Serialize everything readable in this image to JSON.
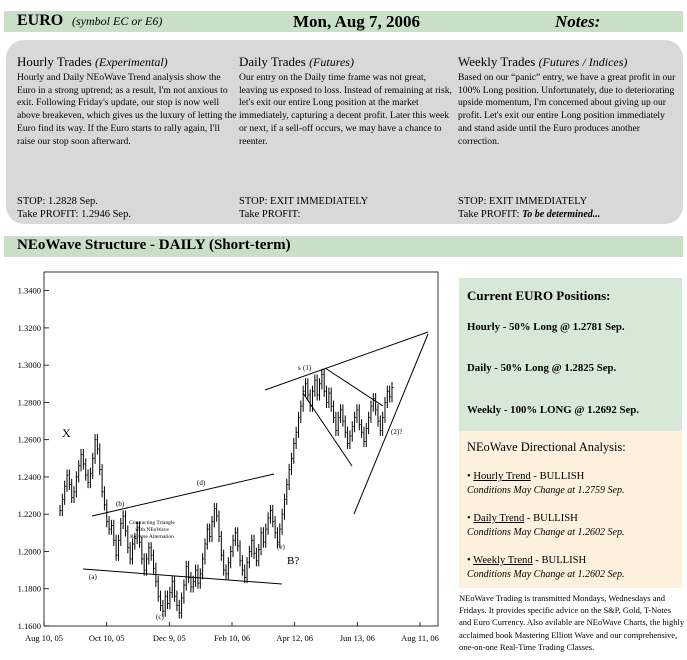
{
  "header": {
    "currency": "EURO",
    "symbol": "(symbol EC or E6)",
    "date": "Mon, Aug 7, 2006",
    "notes_label": "Notes:"
  },
  "notes": [
    {
      "title": "Hourly Trades",
      "subtitle": "(Experimental)",
      "body": "Hourly and Daily NEoWave Trend analysis show the Euro in a strong uptrend; as a result, I'm not anxious to exit. Following Friday's update, our stop is now well above breakeven, which gives us the luxury of letting the Euro find its way. If the Euro starts to rally again, I'll raise our stop soon afterward.",
      "stop": "STOP: 1.2828 Sep.",
      "profit_label": "Take PROFIT: ",
      "profit_value": "1.2946 Sep."
    },
    {
      "title": "Daily Trades",
      "subtitle": "(Futures)",
      "body": "Our entry on the Daily time frame was not great, leaving us exposed to loss. Instead of remaining at risk, let's exit our entire Long position at the market immediately, capturing a decent profit. Later this week or next, if a sell-off occurs, we may have a chance to reenter.",
      "stop": "STOP: EXIT IMMEDIATELY",
      "profit_label": "Take PROFIT:",
      "profit_value": ""
    },
    {
      "title": "Weekly Trades",
      "subtitle": "(Futures / Indices)",
      "body": "Based on our “panic” entry, we have a great profit in our 100% Long position. Unfortunately, due to deteriorating upside momentum, I'm concerned about giving up our profit. Let's exit our entire Long position immediately and stand aside until the Euro produces another correction.",
      "stop": "STOP: EXIT IMMEDIATELY",
      "profit_label": "Take PROFIT: ",
      "profit_value": "To be determined..."
    }
  ],
  "structure": {
    "title": "NEoWave Structure - DAILY (Short-term)"
  },
  "positions": {
    "title": "Current EURO Positions:",
    "items": [
      "Hourly - 50% Long @ 1.2781 Sep.",
      "Daily - 50% Long @ 1.2825 Sep.",
      "Weekly - 100% LONG @ 1.2692 Sep."
    ]
  },
  "directional": {
    "title": "NEoWave Directional Analysis:",
    "items": [
      {
        "bullet": "• ",
        "trend": "Hourly Trend",
        "state": " - BULLISH",
        "condition": "Conditions May Change at 1.2759 Sep."
      },
      {
        "bullet": "• ",
        "trend": "Daily Trend",
        "state": " - BULLISH",
        "condition": "Conditions May Change at 1.2602 Sep."
      },
      {
        "bullet": "• ",
        "trend": "Weekly Trend",
        "state": " - BULLISH",
        "condition": "Conditions May Change at 1.2602 Sep."
      }
    ]
  },
  "footer": {
    "text": "NEoWave Trading is transmitted Mondays, Wednesdays and Fridays. It provides specific advice on the S&P, Gold, T-Notes and Euro Currency. Also avilable are NEoWave Charts, the highly acclaimed book Mastering Elliott Wave and our comprehensive, one-on-one Real-Time Trading Classes."
  },
  "chart_data": {
    "type": "bar",
    "title": "",
    "xlabel": "",
    "ylabel": "",
    "ylim": [
      1.16,
      1.35
    ],
    "y_ticks": [
      "1.1600",
      "1.1800",
      "1.2000",
      "1.2200",
      "1.2400",
      "1.2600",
      "1.2800",
      "1.3000",
      "1.3200",
      "1.3400"
    ],
    "x_ticks": [
      "Aug 10, 05",
      "Oct 10, 05",
      "Dec 9, 05",
      "Feb 10, 06",
      "Apr 12, 06",
      "Jun 13, 06",
      "Aug 11, 06"
    ],
    "annotations": [
      "X",
      "(a)",
      "(b)",
      "(c)",
      "(d)",
      "(e)",
      "B?",
      "(1)",
      "(2)?",
      "Contracting Triangle",
      "with NEoWave",
      "Reverse Alternation"
    ],
    "series": [
      {
        "values": [
          1.222,
          1.228,
          1.235,
          1.241,
          1.236,
          1.229,
          1.232,
          1.24,
          1.246,
          1.252,
          1.247,
          1.241,
          1.237,
          1.242,
          1.25,
          1.26,
          1.255,
          1.244,
          1.232,
          1.225,
          1.216,
          1.212,
          1.214,
          1.206,
          1.198,
          1.206,
          1.215,
          1.219,
          1.211,
          1.202,
          1.196,
          1.204,
          1.207,
          1.213,
          1.205,
          1.196,
          1.19,
          1.196,
          1.202,
          1.198,
          1.191,
          1.184,
          1.176,
          1.171,
          1.168,
          1.176,
          1.172,
          1.178,
          1.184,
          1.176,
          1.171,
          1.167,
          1.175,
          1.182,
          1.192,
          1.186,
          1.181,
          1.184,
          1.19,
          1.183,
          1.188,
          1.196,
          1.204,
          1.212,
          1.208,
          1.216,
          1.223,
          1.219,
          1.208,
          1.198,
          1.19,
          1.188,
          1.194,
          1.2,
          1.206,
          1.21,
          1.203,
          1.195,
          1.19,
          1.186,
          1.194,
          1.2,
          1.206,
          1.199,
          1.195,
          1.201,
          1.21,
          1.205,
          1.212,
          1.218,
          1.222,
          1.216,
          1.21,
          1.205,
          1.212,
          1.22,
          1.228,
          1.236,
          1.244,
          1.25,
          1.258,
          1.264,
          1.272,
          1.278,
          1.286,
          1.29,
          1.284,
          1.278,
          1.286,
          1.292,
          1.284,
          1.29,
          1.295,
          1.286,
          1.28,
          1.285,
          1.278,
          1.272,
          1.265,
          1.272,
          1.276,
          1.27,
          1.264,
          1.258,
          1.262,
          1.267,
          1.272,
          1.276,
          1.268,
          1.264,
          1.259,
          1.266,
          1.272,
          1.278,
          1.282,
          1.276,
          1.27,
          1.265,
          1.272,
          1.28,
          1.286,
          1.283,
          1.288
        ]
      }
    ]
  }
}
